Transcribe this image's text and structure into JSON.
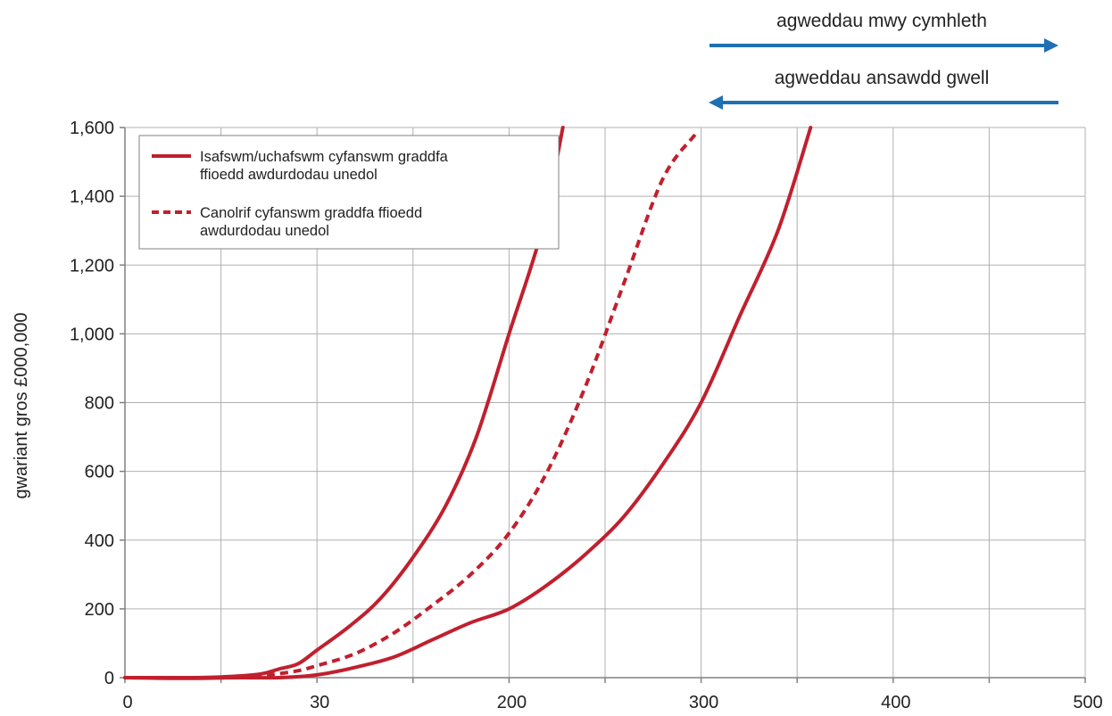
{
  "chart_data": {
    "type": "line",
    "ylabel": "gwariant gros £000,000",
    "xlabel": "",
    "x_ticks": [
      "0",
      "30",
      "200",
      "300",
      "400",
      "500"
    ],
    "ylim": [
      0,
      1600
    ],
    "y_ticks": [
      "0",
      "200",
      "400",
      "600",
      "800",
      "1,000",
      "1,200",
      "1,400",
      "1,600"
    ],
    "y_tick_values": [
      0,
      200,
      400,
      600,
      800,
      1000,
      1200,
      1400,
      1600
    ],
    "grid": true,
    "legend_position": "top-left",
    "legend": [
      "Isafswm/uchafswm cyfanswm graddfa ffioedd awdurdodau unedol",
      "Canolrif cyfanswm graddfa ffioedd awdurdodau unedol"
    ],
    "series": [
      {
        "name": "Isafswm/uchafswm cyfanswm graddfa ffioedd awdurdodau unedol",
        "style": "solid",
        "points": [
          [
            0,
            0
          ],
          [
            0.3,
            0
          ],
          [
            0.5,
            2
          ],
          [
            0.7,
            10
          ],
          [
            0.8,
            25
          ],
          [
            0.9,
            40
          ],
          [
            1.0,
            80
          ],
          [
            1.17,
            150
          ],
          [
            1.33,
            230
          ],
          [
            1.5,
            350
          ],
          [
            1.67,
            500
          ],
          [
            1.83,
            700
          ],
          [
            2.0,
            1000
          ],
          [
            2.17,
            1300
          ],
          [
            2.28,
            1600
          ]
        ]
      },
      {
        "name": "Isafswm/uchafswm cyfanswm graddfa ffioedd awdurdodau unedol",
        "style": "solid",
        "points": [
          [
            0,
            0
          ],
          [
            0.3,
            -2
          ],
          [
            0.6,
            0
          ],
          [
            0.8,
            0
          ],
          [
            1.0,
            8
          ],
          [
            1.2,
            30
          ],
          [
            1.4,
            60
          ],
          [
            1.6,
            110
          ],
          [
            1.8,
            160
          ],
          [
            2.0,
            200
          ],
          [
            2.2,
            270
          ],
          [
            2.4,
            360
          ],
          [
            2.6,
            470
          ],
          [
            2.8,
            620
          ],
          [
            3.0,
            800
          ],
          [
            3.2,
            1050
          ],
          [
            3.4,
            1300
          ],
          [
            3.57,
            1600
          ]
        ]
      },
      {
        "name": "Canolrif cyfanswm graddfa ffioedd awdurdodau unedol",
        "style": "dashed",
        "points": [
          [
            0.6,
            0
          ],
          [
            0.75,
            8
          ],
          [
            0.9,
            20
          ],
          [
            1.0,
            35
          ],
          [
            1.2,
            70
          ],
          [
            1.4,
            130
          ],
          [
            1.6,
            210
          ],
          [
            1.8,
            300
          ],
          [
            2.0,
            420
          ],
          [
            2.2,
            600
          ],
          [
            2.4,
            850
          ],
          [
            2.6,
            1150
          ],
          [
            2.8,
            1450
          ],
          [
            2.97,
            1580
          ]
        ]
      }
    ]
  },
  "arrows": {
    "top_label": "agweddau mwy cymhleth",
    "bottom_label": "agweddau ansawdd gwell",
    "color": "#1f6fb2"
  },
  "colors": {
    "series": "#c0202e",
    "grid": "#b0b0b0",
    "axis": "#808080"
  }
}
